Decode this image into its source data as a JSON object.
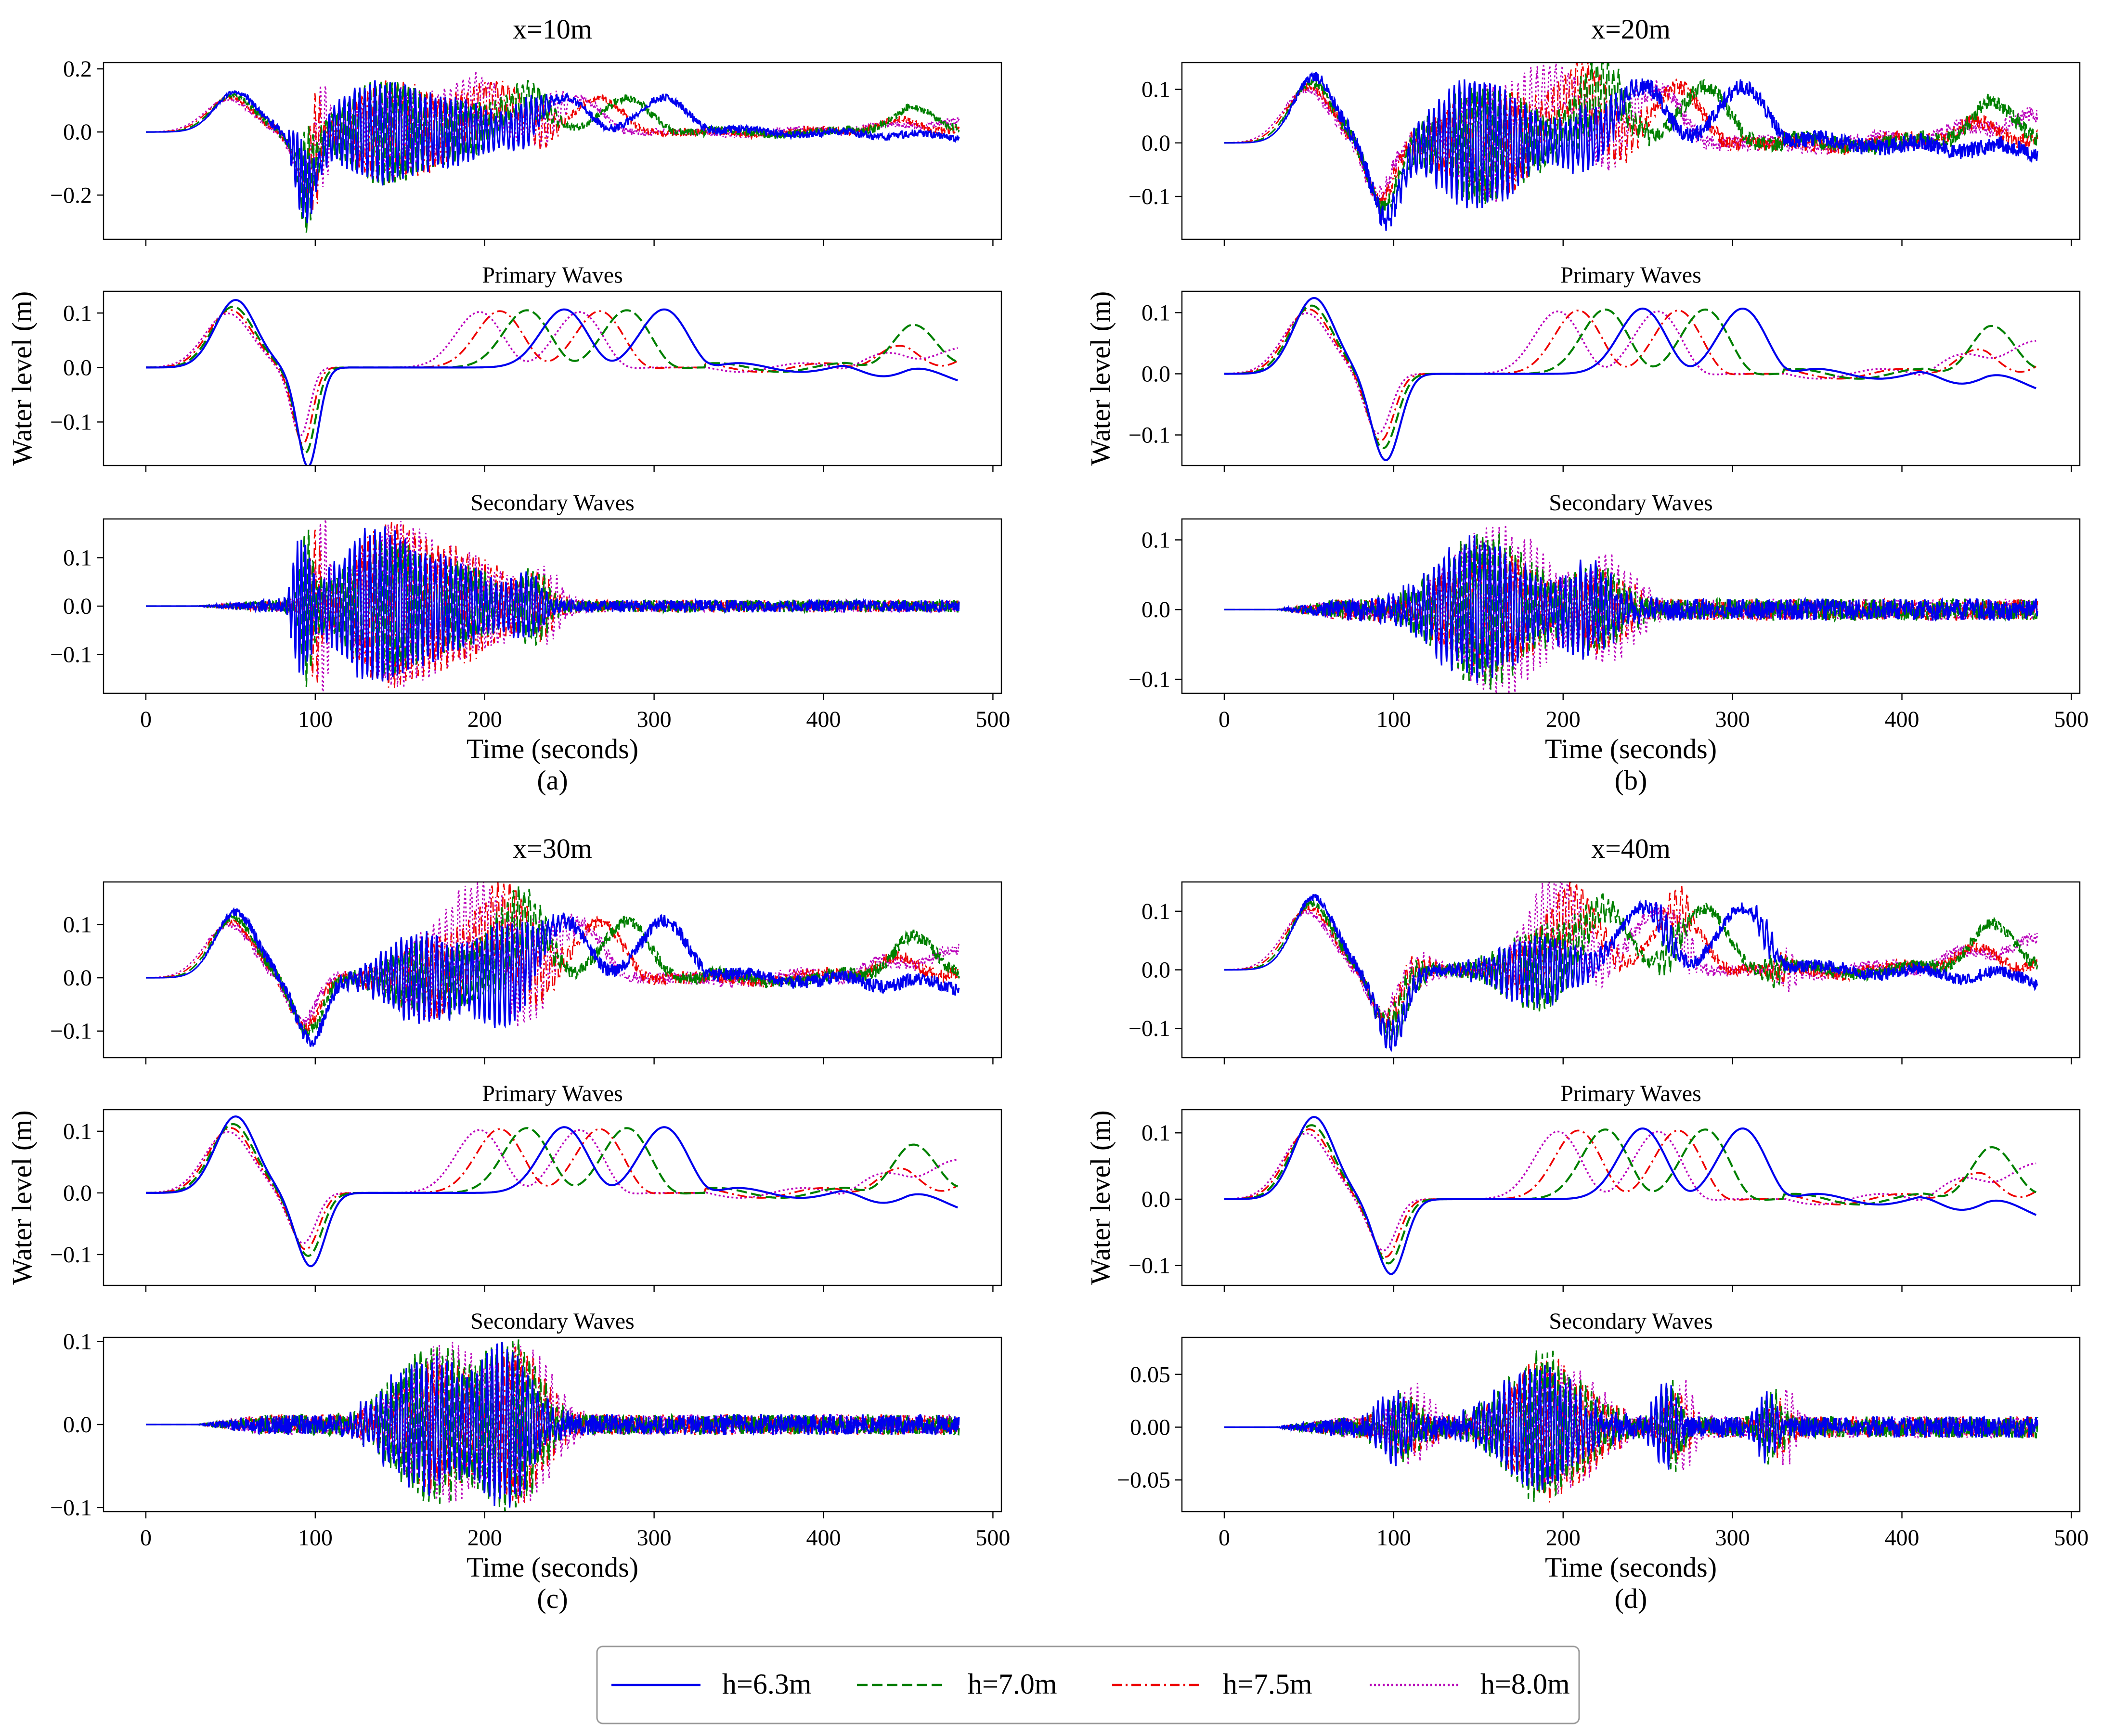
{
  "colors": {
    "h63": "#0000ee",
    "h70": "#008000",
    "h75": "#ee0000",
    "h80": "#bb00bb",
    "axis": "#000000"
  },
  "legend": [
    {
      "label": "h=6.3m",
      "style": "solid",
      "color": "#0000ee"
    },
    {
      "label": "h=7.0m",
      "style": "dashed",
      "color": "#008000"
    },
    {
      "label": "h=7.5m",
      "style": "dashdot",
      "color": "#ee0000"
    },
    {
      "label": "h=8.0m",
      "style": "dotted",
      "color": "#bb00bb"
    }
  ],
  "chart_data": [
    {
      "type": "line",
      "id": "a",
      "panel_label": "(a)",
      "title": "x=10m",
      "xlabel": "Time (seconds)",
      "ylabel": "Water level (m)",
      "xlim": [
        -25,
        505
      ],
      "xticks": [
        0,
        100,
        200,
        300,
        400,
        500
      ],
      "subplots": [
        {
          "kind": "total",
          "subtitle": "",
          "ylim": [
            -0.34,
            0.22
          ],
          "yticks": [
            {
              "v": -0.2,
              "t": "−0.2"
            },
            {
              "v": 0.0,
              "t": "0.0"
            },
            {
              "v": 0.2,
              "t": "0.2"
            }
          ],
          "primary": {
            "bumps": [
              [
                53,
                0.128,
                12
              ],
              [
                96,
                -0.175,
                6
              ],
              [
                247,
                0.118,
                14
              ],
              [
                306,
                0.118,
                14
              ]
            ],
            "tail": [
              -0.03,
              0.07,
              0.04,
              0.05
            ]
          },
          "secondary": {
            "packets": [
              [
                92,
                0.17,
                4,
                2.4
              ],
              [
                135,
                0.16,
                22,
                3.0
              ],
              [
                180,
                0.09,
                25,
                3.0
              ],
              [
                225,
                0.06,
                8,
                3.0
              ]
            ],
            "noise": 0.012
          }
        },
        {
          "kind": "primary",
          "subtitle": "Primary Waves",
          "ylim": [
            -0.18,
            0.14
          ],
          "yticks": [
            {
              "v": -0.1,
              "t": "−0.1"
            },
            {
              "v": 0.0,
              "t": "0.0"
            },
            {
              "v": 0.1,
              "t": "0.1"
            }
          ],
          "primary": {
            "bumps": [
              [
                53,
                0.124,
                12
              ],
              [
                96,
                -0.176,
                6
              ],
              [
                247,
                0.116,
                14
              ],
              [
                306,
                0.116,
                14
              ]
            ],
            "tail": [
              -0.03,
              0.07,
              0.04,
              0.05
            ]
          }
        },
        {
          "kind": "secondary",
          "subtitle": "Secondary Waves",
          "ylim": [
            -0.18,
            0.18
          ],
          "yticks": [
            {
              "v": -0.1,
              "t": "−0.1"
            },
            {
              "v": 0.0,
              "t": "0.0"
            },
            {
              "v": 0.1,
              "t": "0.1"
            }
          ],
          "secondary": {
            "packets": [
              [
                92,
                0.17,
                4,
                2.4
              ],
              [
                135,
                0.16,
                22,
                3.0
              ],
              [
                180,
                0.09,
                25,
                3.0
              ],
              [
                225,
                0.06,
                8,
                3.0
              ]
            ],
            "noise": 0.012
          }
        }
      ]
    },
    {
      "type": "line",
      "id": "b",
      "panel_label": "(b)",
      "title": "x=20m",
      "xlabel": "Time (seconds)",
      "ylabel": "Water level (m)",
      "xlim": [
        -25,
        505
      ],
      "xticks": [
        0,
        100,
        200,
        300,
        400,
        500
      ],
      "subplots": [
        {
          "kind": "total",
          "subtitle": "",
          "ylim": [
            -0.18,
            0.15
          ],
          "yticks": [
            {
              "v": -0.1,
              "t": "−0.1"
            },
            {
              "v": 0.0,
              "t": "0.0"
            },
            {
              "v": 0.1,
              "t": "0.1"
            }
          ],
          "primary": {
            "bumps": [
              [
                53,
                0.124,
                12
              ],
              [
                96,
                -0.135,
                8
              ],
              [
                247,
                0.116,
                14
              ],
              [
                306,
                0.116,
                14
              ]
            ],
            "tail": [
              -0.03,
              0.07,
              0.04,
              0.07
            ]
          },
          "secondary": {
            "packets": [
              [
                150,
                0.11,
                25,
                3.0
              ],
              [
                215,
                0.06,
                15,
                3.0
              ]
            ],
            "noise": 0.015
          }
        },
        {
          "kind": "primary",
          "subtitle": "Primary Waves",
          "ylim": [
            -0.15,
            0.135
          ],
          "yticks": [
            {
              "v": -0.1,
              "t": "−0.1"
            },
            {
              "v": 0.0,
              "t": "0.0"
            },
            {
              "v": 0.1,
              "t": "0.1"
            }
          ],
          "primary": {
            "bumps": [
              [
                53,
                0.124,
                12
              ],
              [
                96,
                -0.135,
                8
              ],
              [
                247,
                0.116,
                14
              ],
              [
                306,
                0.116,
                14
              ]
            ],
            "tail": [
              -0.03,
              0.07,
              0.04,
              0.07
            ]
          }
        },
        {
          "kind": "secondary",
          "subtitle": "Secondary Waves",
          "ylim": [
            -0.12,
            0.13
          ],
          "yticks": [
            {
              "v": -0.1,
              "t": "−0.1"
            },
            {
              "v": 0.0,
              "t": "0.0"
            },
            {
              "v": 0.1,
              "t": "0.1"
            }
          ],
          "secondary": {
            "packets": [
              [
                150,
                0.11,
                25,
                3.0
              ],
              [
                215,
                0.06,
                15,
                3.0
              ]
            ],
            "noise": 0.015
          }
        }
      ]
    },
    {
      "type": "line",
      "id": "c",
      "panel_label": "(c)",
      "title": "x=30m",
      "xlabel": "Time (seconds)",
      "ylabel": "Water level (m)",
      "xlim": [
        -25,
        505
      ],
      "xticks": [
        0,
        100,
        200,
        300,
        400,
        500
      ],
      "subplots": [
        {
          "kind": "total",
          "subtitle": "",
          "ylim": [
            -0.15,
            0.18
          ],
          "yticks": [
            {
              "v": -0.1,
              "t": "−0.1"
            },
            {
              "v": 0.0,
              "t": "0.0"
            },
            {
              "v": 0.1,
              "t": "0.1"
            }
          ],
          "primary": {
            "bumps": [
              [
                53,
                0.124,
                12
              ],
              [
                98,
                -0.115,
                8
              ],
              [
                247,
                0.116,
                14
              ],
              [
                306,
                0.116,
                14
              ]
            ],
            "tail": [
              -0.03,
              0.07,
              0.04,
              0.07
            ]
          },
          "secondary": {
            "packets": [
              [
                165,
                0.085,
                22,
                3.0
              ],
              [
                212,
                0.09,
                15,
                3.0
              ]
            ],
            "noise": 0.012
          }
        },
        {
          "kind": "primary",
          "subtitle": "Primary Waves",
          "ylim": [
            -0.15,
            0.135
          ],
          "yticks": [
            {
              "v": -0.1,
              "t": "−0.1"
            },
            {
              "v": 0.0,
              "t": "0.0"
            },
            {
              "v": 0.1,
              "t": "0.1"
            }
          ],
          "primary": {
            "bumps": [
              [
                53,
                0.124,
                12
              ],
              [
                98,
                -0.115,
                8
              ],
              [
                247,
                0.116,
                14
              ],
              [
                306,
                0.116,
                14
              ]
            ],
            "tail": [
              -0.03,
              0.07,
              0.04,
              0.07
            ]
          }
        },
        {
          "kind": "secondary",
          "subtitle": "Secondary Waves",
          "ylim": [
            -0.105,
            0.105
          ],
          "yticks": [
            {
              "v": -0.1,
              "t": "−0.1"
            },
            {
              "v": 0.0,
              "t": "0.0"
            },
            {
              "v": 0.1,
              "t": "0.1"
            }
          ],
          "secondary": {
            "packets": [
              [
                165,
                0.085,
                22,
                3.0
              ],
              [
                212,
                0.09,
                15,
                3.0
              ]
            ],
            "noise": 0.012
          }
        }
      ]
    },
    {
      "type": "line",
      "id": "d",
      "panel_label": "(d)",
      "title": "x=40m",
      "xlabel": "Time (seconds)",
      "ylabel": "Water level (m)",
      "xlim": [
        -25,
        505
      ],
      "xticks": [
        0,
        100,
        200,
        300,
        400,
        500
      ],
      "subplots": [
        {
          "kind": "total",
          "subtitle": "",
          "ylim": [
            -0.15,
            0.15
          ],
          "yticks": [
            {
              "v": -0.1,
              "t": "−0.1"
            },
            {
              "v": 0.0,
              "t": "0.0"
            },
            {
              "v": 0.1,
              "t": "0.1"
            }
          ],
          "primary": {
            "bumps": [
              [
                53,
                0.124,
                12
              ],
              [
                99,
                -0.11,
                8
              ],
              [
                247,
                0.116,
                14
              ],
              [
                306,
                0.116,
                14
              ]
            ],
            "tail": [
              -0.03,
              0.07,
              0.04,
              0.07
            ]
          },
          "secondary": {
            "packets": [
              [
                100,
                0.03,
                10,
                3.0
              ],
              [
                185,
                0.07,
                22,
                3.0
              ],
              [
                260,
                0.035,
                6,
                3.0
              ],
              [
                320,
                0.03,
                5,
                3.0
              ]
            ],
            "noise": 0.01
          }
        },
        {
          "kind": "primary",
          "subtitle": "Primary Waves",
          "ylim": [
            -0.13,
            0.135
          ],
          "yticks": [
            {
              "v": -0.1,
              "t": "−0.1"
            },
            {
              "v": 0.0,
              "t": "0.0"
            },
            {
              "v": 0.1,
              "t": "0.1"
            }
          ],
          "primary": {
            "bumps": [
              [
                53,
                0.124,
                12
              ],
              [
                99,
                -0.11,
                8
              ],
              [
                247,
                0.116,
                14
              ],
              [
                306,
                0.116,
                14
              ]
            ],
            "tail": [
              -0.03,
              0.07,
              0.04,
              0.07
            ]
          }
        },
        {
          "kind": "secondary",
          "subtitle": "Secondary Waves",
          "ylim": [
            -0.08,
            0.085
          ],
          "yticks": [
            {
              "v": -0.05,
              "t": "−0.05"
            },
            {
              "v": 0.0,
              "t": "0.00"
            },
            {
              "v": 0.05,
              "t": "0.05"
            }
          ],
          "secondary": {
            "packets": [
              [
                100,
                0.03,
                10,
                3.0
              ],
              [
                185,
                0.07,
                22,
                3.0
              ],
              [
                260,
                0.035,
                6,
                3.0
              ],
              [
                320,
                0.03,
                5,
                3.0
              ]
            ],
            "noise": 0.01
          }
        }
      ]
    }
  ]
}
